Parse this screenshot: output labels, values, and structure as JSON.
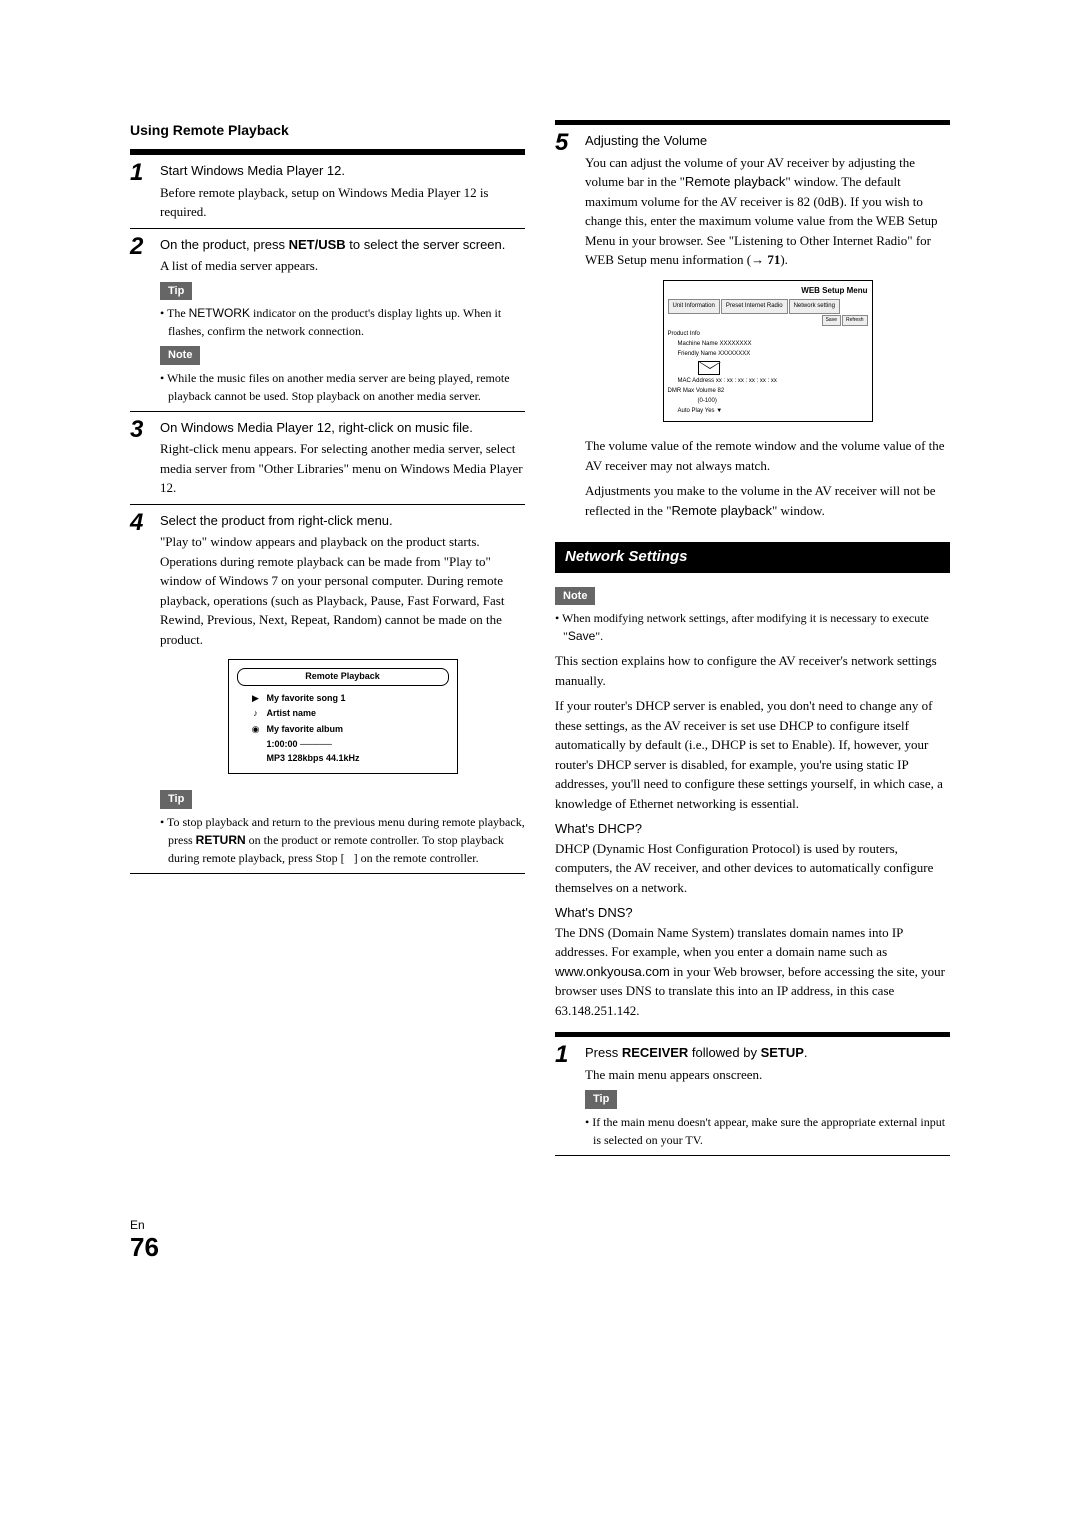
{
  "left": {
    "heading": "Using Remote Playback",
    "steps": [
      {
        "num": "1",
        "title_parts": [
          "Start Windows Media Player 12."
        ],
        "body": "Before remote playback, setup on Windows Media Player 12 is required."
      },
      {
        "num": "2",
        "title_html": "On the product, press <b class='k'>NET/USB</b> to select the server screen.",
        "body": "A list of media server appears.",
        "tip_label": "Tip",
        "tip_html": "• The <span class='sans'>NETWORK</span> indicator on the product's display lights up. When it flashes, confirm the network connection.",
        "note_label": "Note",
        "note_text": "• While the music files on another media server are being played, remote playback cannot be used. Stop playback on another media server."
      },
      {
        "num": "3",
        "title_parts": [
          "On Windows Media Player 12, right-click on music file."
        ],
        "body": "Right-click menu appears. For selecting another media server, select media server from \"Other Libraries\" menu on Windows Media Player 12."
      },
      {
        "num": "4",
        "title_parts": [
          "Select the product from right-click menu."
        ],
        "body": "\"Play to\" window appears and playback on the product starts. Operations during remote playback can be made from \"Play to\" window of Windows 7 on your personal computer. During remote playback, operations (such as Playback, Pause, Fast Forward, Fast Rewind, Previous, Next, Repeat, Random) cannot be made on the product.",
        "fig": {
          "header": "Remote Playback",
          "song": "My favorite song 1",
          "artist": "Artist name",
          "album": "My favorite album",
          "time": "1:00:00",
          "codec": "MP3 128kbps 44.1kHz"
        },
        "tip_label": "Tip",
        "tip_html": "• To stop playback and return to the previous menu during remote playback, press <b class='k'>RETURN</b> on the product or remote controller. To stop playback during remote playback, press Stop [&nbsp;&nbsp;&nbsp;] on the remote controller."
      }
    ]
  },
  "right": {
    "step5": {
      "num": "5",
      "title": "Adjusting the Volume",
      "body_html": "You can adjust the volume of your AV receiver by adjusting the volume bar in the \"<span class='sans'>Remote playback</span>\" window. The default maximum volume for the AV receiver is 82 (0dB). If you wish to change this, enter the maximum volume value from the WEB Setup Menu in your browser. See \"Listening to Other Internet Radio\" for WEB Setup menu information (<span class='arrow'>&rarr; 71</span>).",
      "web_fig": {
        "title": "WEB Setup Menu",
        "tabs": [
          "Unit Information",
          "Preset Internet Radio",
          "Network setting"
        ],
        "subtabs": [
          "Save",
          "Refresh"
        ],
        "section": "Product Info",
        "lines": [
          "Machine Name  XXXXXXXX",
          "Friendly Name  XXXXXXXX",
          "MAC Address  xx : xx : xx : xx : xx : xx",
          "DMR Max Volume  82",
          "(0-100)",
          "Auto Play  Yes ▼"
        ]
      },
      "after_fig_1": "The volume value of the remote window and the volume value of the AV receiver may not always match.",
      "after_fig_2_html": "Adjustments you make to the volume in the AV receiver will not be reflected in the \"<span class='sans'>Remote playback</span>\" window."
    },
    "network": {
      "heading": "Network Settings",
      "note_label": "Note",
      "note_html": "• When modifying network settings, after modifying it is necessary to execute \"<span class='sans'>Save</span>\".",
      "p1": "This section explains how to configure the AV receiver's network settings manually.",
      "p2": "If your router's DHCP server is enabled, you don't need to change any of these settings, as the AV receiver is set use DHCP to configure itself automatically by default (i.e., DHCP is set to Enable). If, however, your router's DHCP server is disabled, for example, you're using static IP addresses, you'll need to configure these settings yourself, in which case, a knowledge of Ethernet networking is essential.",
      "dhcp_h": "What's DHCP?",
      "dhcp_p": "DHCP (Dynamic Host Configuration Protocol) is used by routers, computers, the AV receiver, and other devices to automatically configure themselves on a network.",
      "dns_h": "What's DNS?",
      "dns_p_html": "The DNS (Domain Name System) translates domain names into IP addresses. For example, when you enter a domain name such as <span class='sans'>www.onkyousa.com</span> in your Web browser, before accessing the site, your browser uses DNS to translate this into an IP address, in this case 63.148.251.142."
    },
    "step1": {
      "num": "1",
      "title_html": "Press <b class='k'>RECEIVER</b> followed by <b class='k'>SETUP</b>.",
      "body": "The main menu appears onscreen.",
      "tip_label": "Tip",
      "tip_text": "• If the main menu doesn't appear, make sure the appropriate external input is selected on your TV."
    }
  },
  "footer": {
    "lang": "En",
    "page": "76"
  }
}
